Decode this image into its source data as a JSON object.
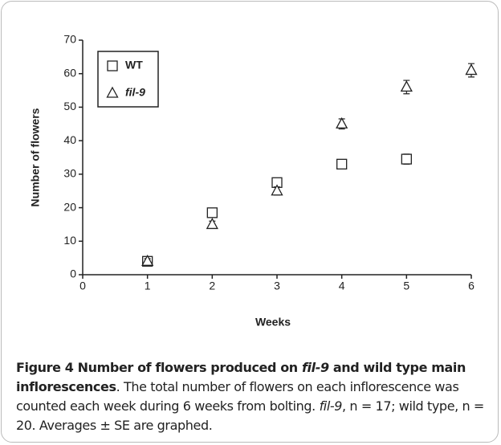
{
  "chart_data": {
    "type": "scatter",
    "x": [
      1,
      2,
      3,
      4,
      5,
      6
    ],
    "series": [
      {
        "name": "WT",
        "color": "#222222",
        "marker": "square",
        "values": [
          4,
          18.5,
          27.5,
          33,
          34.5,
          null
        ],
        "errors": [
          0.8,
          1,
          1.2,
          1.2,
          1.5,
          null
        ]
      },
      {
        "name": "fil-9",
        "color": "#222222",
        "marker": "triangle",
        "values": [
          4,
          15,
          25,
          45,
          56,
          61
        ],
        "errors": [
          0.8,
          1,
          1.2,
          1.5,
          2,
          2
        ]
      }
    ],
    "xlabel": "Weeks",
    "ylabel": "Number of flowers",
    "xlim": [
      0,
      6
    ],
    "xticks": [
      0,
      1,
      2,
      3,
      4,
      5,
      6
    ],
    "ylim": [
      0,
      70
    ],
    "yticks": [
      0,
      10,
      20,
      30,
      40,
      50,
      60,
      70
    ],
    "grid": false,
    "legend": "upper left"
  },
  "caption": [
    "Figure 4 Number of flowers produced on ",
    "fil-9",
    " and wild type main inflorescences",
    ". The total number of flowers on each inflorescence was counted each week during 6 weeks from bolting. ",
    "fil-9",
    ", n = 17; wild type, n = 20. Averages ± SE are graphed."
  ]
}
